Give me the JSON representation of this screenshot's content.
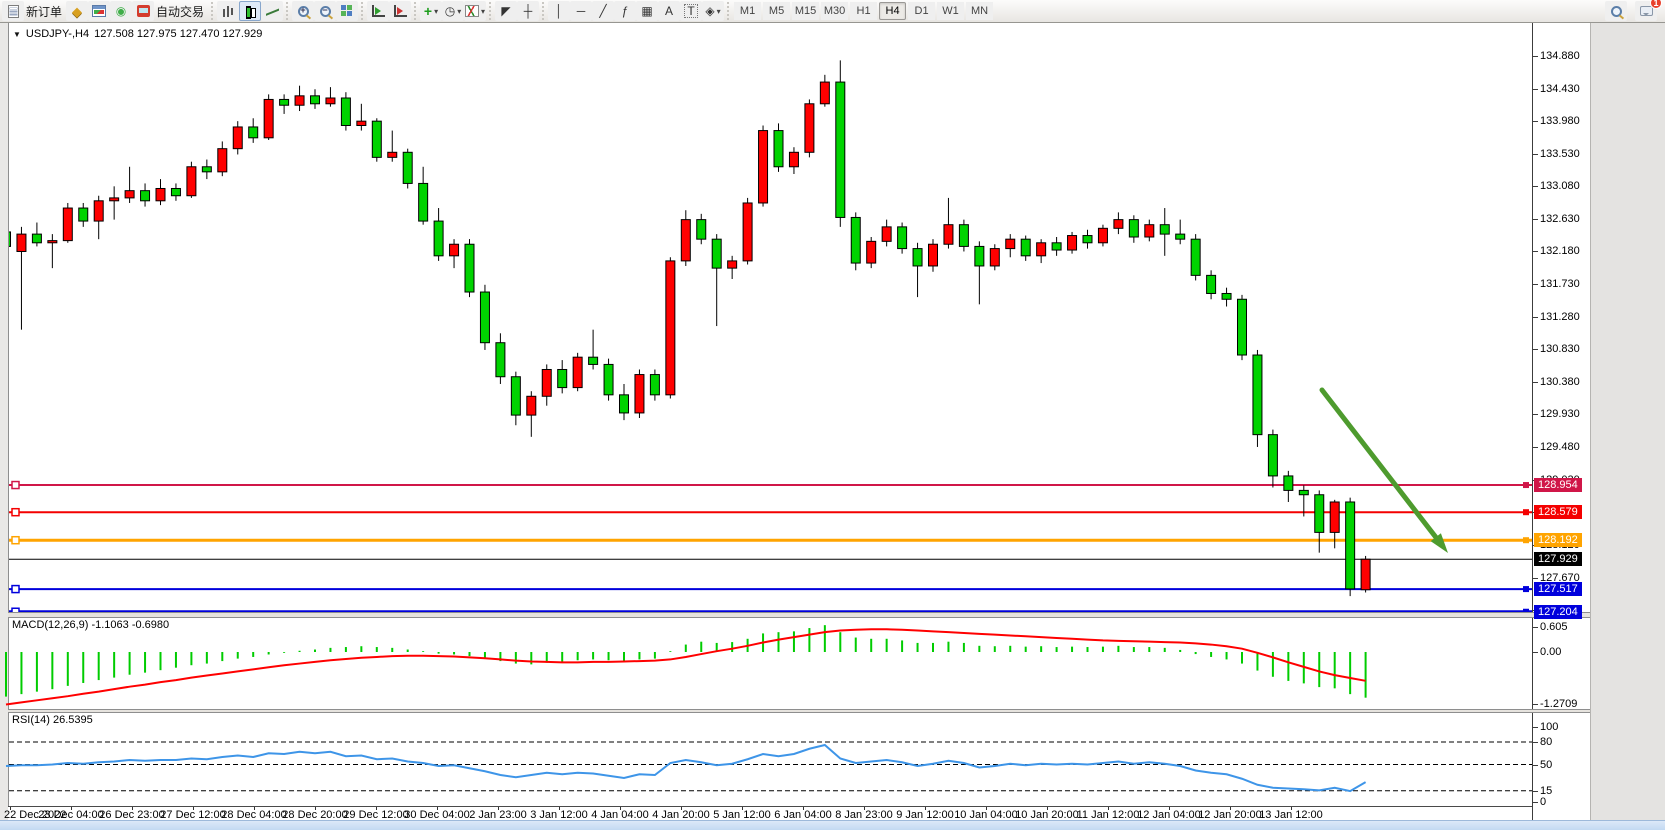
{
  "toolbar": {
    "new_order_label": "新订单",
    "auto_trading_label": "自动交易",
    "timeframes": [
      "M1",
      "M5",
      "M15",
      "M30",
      "H1",
      "H4",
      "D1",
      "W1",
      "MN"
    ],
    "active_timeframe": "H4",
    "chat_badge_count": "1"
  },
  "icons": {
    "collapse": "▼",
    "diamond": "◆",
    "signal": "◉",
    "clock": "◷",
    "cursor": "◤",
    "crosshair": "┼",
    "vline": "│",
    "hline": "─",
    "trendline": "╱",
    "fibonacci": "ƒ",
    "grid": "▦",
    "text": "A",
    "label": "T",
    "shapes": "◈",
    "dropdown": "▾",
    "plus": "+"
  },
  "chart": {
    "symbol_title": "USDJPY-,H4",
    "ohlc_text": "127.508 127.975 127.470 127.929",
    "macd_label": "MACD(12,26,9) -1.1063 -0.6980",
    "rsi_label": "RSI(14) 26.5395"
  },
  "chart_data": [
    {
      "type": "candlestick",
      "symbol": "USDJPY-",
      "timeframe": "H4",
      "up_color": "#ff0000",
      "down_color": "#00d300",
      "price_ticks": [
        {
          "p": 134.88,
          "t": "134.880"
        },
        {
          "p": 134.43,
          "t": "134.430"
        },
        {
          "p": 133.98,
          "t": "133.980"
        },
        {
          "p": 133.53,
          "t": "133.530"
        },
        {
          "p": 133.08,
          "t": "133.080"
        },
        {
          "p": 132.63,
          "t": "132.630"
        },
        {
          "p": 132.18,
          "t": "132.180"
        },
        {
          "p": 131.73,
          "t": "131.730"
        },
        {
          "p": 131.28,
          "t": "131.280"
        },
        {
          "p": 130.83,
          "t": "130.830"
        },
        {
          "p": 130.38,
          "t": "130.380"
        },
        {
          "p": 129.93,
          "t": "129.930"
        },
        {
          "p": 129.48,
          "t": "129.480"
        },
        {
          "p": 129.03,
          "t": "129.030"
        },
        {
          "p": 128.58,
          "t": "128.580"
        },
        {
          "p": 128.12,
          "t": "128.120"
        },
        {
          "p": 127.67,
          "t": "127.670"
        },
        {
          "p": 127.23,
          "t": "127.230"
        }
      ],
      "time_labels": [
        "22 Dec 2022",
        "23 Dec 04:00",
        "26 Dec 23:00",
        "27 Dec 12:00",
        "28 Dec 04:00",
        "28 Dec 20:00",
        "29 Dec 12:00",
        "30 Dec 04:00",
        "2 Jan 23:00",
        "3 Jan 12:00",
        "4 Jan 04:00",
        "4 Jan 20:00",
        "5 Jan 12:00",
        "6 Jan 04:00",
        "8 Jan 23:00",
        "9 Jan 12:00",
        "10 Jan 04:00",
        "10 Jan 20:00",
        "11 Jan 12:00",
        "12 Jan 04:00",
        "12 Jan 20:00",
        "13 Jan 12:00"
      ],
      "hlines": [
        {
          "price": 128.954,
          "color": "#d01648",
          "width": 2,
          "label": "128.954"
        },
        {
          "price": 128.579,
          "color": "#f40000",
          "width": 2,
          "label": "128.579"
        },
        {
          "price": 128.192,
          "color": "#ffa400",
          "width": 3,
          "label": "128.192"
        },
        {
          "price": 127.929,
          "color": "#000000",
          "width": 1,
          "label": "127.929",
          "no_anchor": true
        },
        {
          "price": 127.517,
          "color": "#0000dc",
          "width": 2,
          "label": "127.517"
        },
        {
          "price": 127.204,
          "color": "#0000dc",
          "width": 3,
          "label": "127.204"
        }
      ],
      "arrow": {
        "from": [
          1322,
          390
        ],
        "to": [
          1448,
          553
        ],
        "color": "#4e9b2e"
      },
      "candles": [
        [
          132.45,
          132.5,
          132.18,
          132.25
        ],
        [
          132.18,
          132.52,
          131.1,
          132.42
        ],
        [
          132.42,
          132.58,
          132.25,
          132.3
        ],
        [
          132.3,
          132.42,
          131.95,
          132.33
        ],
        [
          132.33,
          132.85,
          132.3,
          132.78
        ],
        [
          132.78,
          132.85,
          132.52,
          132.6
        ],
        [
          132.6,
          132.95,
          132.35,
          132.88
        ],
        [
          132.88,
          133.08,
          132.62,
          132.92
        ],
        [
          132.92,
          133.35,
          132.85,
          133.02
        ],
        [
          133.02,
          133.12,
          132.8,
          132.88
        ],
        [
          132.88,
          133.18,
          132.82,
          133.05
        ],
        [
          133.05,
          133.12,
          132.88,
          132.95
        ],
        [
          132.95,
          133.42,
          132.92,
          133.35
        ],
        [
          133.35,
          133.45,
          133.18,
          133.28
        ],
        [
          133.28,
          133.7,
          133.22,
          133.6
        ],
        [
          133.6,
          133.98,
          133.52,
          133.9
        ],
        [
          133.9,
          134.02,
          133.68,
          133.75
        ],
        [
          133.75,
          134.35,
          133.72,
          134.28
        ],
        [
          134.28,
          134.35,
          134.08,
          134.2
        ],
        [
          134.2,
          134.47,
          134.12,
          134.33
        ],
        [
          134.33,
          134.42,
          134.15,
          134.22
        ],
        [
          134.22,
          134.45,
          134.18,
          134.3
        ],
        [
          134.3,
          134.38,
          133.85,
          133.92
        ],
        [
          133.92,
          134.22,
          133.85,
          133.98
        ],
        [
          133.98,
          134.02,
          133.42,
          133.48
        ],
        [
          133.48,
          133.85,
          133.42,
          133.55
        ],
        [
          133.55,
          133.6,
          133.05,
          133.12
        ],
        [
          133.12,
          133.35,
          132.55,
          132.6
        ],
        [
          132.6,
          132.78,
          132.05,
          132.12
        ],
        [
          132.12,
          132.35,
          131.95,
          132.28
        ],
        [
          132.28,
          132.35,
          131.55,
          131.62
        ],
        [
          131.62,
          131.72,
          130.82,
          130.92
        ],
        [
          130.92,
          131.05,
          130.35,
          130.45
        ],
        [
          130.45,
          130.52,
          129.78,
          129.92
        ],
        [
          129.92,
          130.25,
          129.62,
          130.18
        ],
        [
          130.18,
          130.62,
          130.05,
          130.55
        ],
        [
          130.55,
          130.68,
          130.22,
          130.3
        ],
        [
          130.3,
          130.78,
          130.25,
          130.72
        ],
        [
          130.72,
          131.1,
          130.55,
          130.62
        ],
        [
          130.62,
          130.7,
          130.12,
          130.2
        ],
        [
          130.2,
          130.35,
          129.85,
          129.95
        ],
        [
          129.95,
          130.55,
          129.88,
          130.48
        ],
        [
          130.48,
          130.55,
          130.12,
          130.2
        ],
        [
          130.2,
          132.1,
          130.15,
          132.05
        ],
        [
          132.05,
          132.75,
          131.98,
          132.62
        ],
        [
          132.62,
          132.7,
          132.28,
          132.35
        ],
        [
          132.35,
          132.42,
          131.15,
          131.95
        ],
        [
          131.95,
          132.12,
          131.8,
          132.05
        ],
        [
          132.05,
          132.92,
          132.0,
          132.85
        ],
        [
          132.85,
          133.92,
          132.8,
          133.85
        ],
        [
          133.85,
          133.95,
          133.28,
          133.35
        ],
        [
          133.35,
          133.62,
          133.25,
          133.55
        ],
        [
          133.55,
          134.28,
          133.48,
          134.22
        ],
        [
          134.22,
          134.62,
          134.18,
          134.52
        ],
        [
          134.52,
          134.82,
          132.52,
          132.65
        ],
        [
          132.65,
          132.72,
          131.92,
          132.02
        ],
        [
          132.02,
          132.38,
          131.95,
          132.32
        ],
        [
          132.32,
          132.62,
          132.25,
          132.52
        ],
        [
          132.52,
          132.58,
          132.15,
          132.22
        ],
        [
          132.22,
          132.3,
          131.55,
          131.98
        ],
        [
          131.98,
          132.35,
          131.9,
          132.28
        ],
        [
          132.28,
          132.92,
          132.22,
          132.55
        ],
        [
          132.55,
          132.62,
          132.18,
          132.25
        ],
        [
          132.25,
          132.32,
          131.45,
          131.98
        ],
        [
          131.98,
          132.28,
          131.92,
          132.22
        ],
        [
          132.22,
          132.42,
          132.1,
          132.35
        ],
        [
          132.35,
          132.4,
          132.05,
          132.12
        ],
        [
          132.12,
          132.35,
          132.02,
          132.3
        ],
        [
          132.3,
          132.38,
          132.12,
          132.2
        ],
        [
          132.2,
          132.45,
          132.15,
          132.4
        ],
        [
          132.4,
          132.48,
          132.22,
          132.3
        ],
        [
          132.3,
          132.55,
          132.25,
          132.5
        ],
        [
          132.5,
          132.72,
          132.42,
          132.62
        ],
        [
          132.62,
          132.68,
          132.3,
          132.38
        ],
        [
          132.38,
          132.62,
          132.32,
          132.55
        ],
        [
          132.55,
          132.78,
          132.12,
          132.42
        ],
        [
          132.42,
          132.62,
          132.28,
          132.35
        ],
        [
          132.35,
          132.42,
          131.78,
          131.85
        ],
        [
          131.85,
          131.92,
          131.52,
          131.6
        ],
        [
          131.6,
          131.68,
          131.42,
          131.52
        ],
        [
          131.52,
          131.58,
          130.68,
          130.75
        ],
        [
          130.75,
          130.82,
          129.48,
          129.65
        ],
        [
          129.65,
          129.72,
          128.92,
          129.08
        ],
        [
          129.08,
          129.15,
          128.72,
          128.88
        ],
        [
          128.88,
          128.95,
          128.52,
          128.82
        ],
        [
          128.82,
          128.88,
          128.02,
          128.3
        ],
        [
          128.3,
          128.75,
          128.08,
          128.72
        ],
        [
          128.72,
          128.78,
          127.42,
          127.52
        ],
        [
          127.508,
          127.975,
          127.47,
          127.929
        ]
      ]
    },
    {
      "type": "macd",
      "label": "MACD(12,26,9)",
      "main_value": "-1.1063",
      "signal_value": "-0.6980",
      "axis_labels": [
        0.605,
        0.0,
        -1.2709
      ],
      "hist_color": "#00cc00",
      "signal_color": "#ff0000",
      "histogram": [
        -1.08,
        -1.02,
        -0.96,
        -0.9,
        -0.82,
        -0.75,
        -0.68,
        -0.62,
        -0.55,
        -0.5,
        -0.44,
        -0.38,
        -0.32,
        -0.28,
        -0.22,
        -0.16,
        -0.12,
        -0.06,
        -0.02,
        0.03,
        0.06,
        0.1,
        0.12,
        0.14,
        0.12,
        0.1,
        0.06,
        0.02,
        -0.04,
        -0.06,
        -0.1,
        -0.15,
        -0.22,
        -0.28,
        -0.3,
        -0.26,
        -0.24,
        -0.2,
        -0.18,
        -0.2,
        -0.22,
        -0.18,
        -0.16,
        0.02,
        0.18,
        0.25,
        0.22,
        0.24,
        0.32,
        0.45,
        0.48,
        0.5,
        0.58,
        0.65,
        0.48,
        0.35,
        0.32,
        0.32,
        0.28,
        0.22,
        0.22,
        0.25,
        0.22,
        0.15,
        0.14,
        0.15,
        0.13,
        0.14,
        0.12,
        0.13,
        0.12,
        0.13,
        0.15,
        0.12,
        0.12,
        0.1,
        0.05,
        -0.05,
        -0.12,
        -0.18,
        -0.28,
        -0.45,
        -0.6,
        -0.7,
        -0.76,
        -0.85,
        -0.88,
        -1.02,
        -1.1063
      ],
      "signal": [
        -1.27,
        -1.22,
        -1.17,
        -1.12,
        -1.07,
        -1.01,
        -0.96,
        -0.9,
        -0.84,
        -0.79,
        -0.73,
        -0.68,
        -0.62,
        -0.57,
        -0.52,
        -0.47,
        -0.42,
        -0.37,
        -0.32,
        -0.28,
        -0.24,
        -0.2,
        -0.17,
        -0.14,
        -0.12,
        -0.1,
        -0.09,
        -0.09,
        -0.1,
        -0.11,
        -0.13,
        -0.15,
        -0.18,
        -0.21,
        -0.23,
        -0.24,
        -0.25,
        -0.25,
        -0.24,
        -0.24,
        -0.23,
        -0.22,
        -0.21,
        -0.18,
        -0.12,
        -0.05,
        0.02,
        0.08,
        0.15,
        0.23,
        0.3,
        0.36,
        0.42,
        0.48,
        0.52,
        0.54,
        0.55,
        0.55,
        0.54,
        0.52,
        0.5,
        0.48,
        0.46,
        0.44,
        0.42,
        0.4,
        0.38,
        0.36,
        0.34,
        0.32,
        0.3,
        0.28,
        0.27,
        0.26,
        0.25,
        0.24,
        0.23,
        0.21,
        0.18,
        0.14,
        0.08,
        -0.02,
        -0.13,
        -0.25,
        -0.36,
        -0.47,
        -0.56,
        -0.63,
        -0.698
      ]
    },
    {
      "type": "rsi",
      "label": "RSI(14)",
      "current_value": "26.5395",
      "period": 14,
      "levels": [
        80,
        50,
        15
      ],
      "axis_labels": [
        100,
        80,
        50,
        15,
        0
      ],
      "color": "#3e95e8",
      "values": [
        48,
        49,
        49,
        50,
        52,
        51,
        53,
        54,
        56,
        55,
        56,
        56,
        58,
        57,
        60,
        62,
        60,
        65,
        64,
        67,
        65,
        67,
        61,
        62,
        57,
        58,
        54,
        52,
        48,
        49,
        45,
        41,
        36,
        33,
        36,
        39,
        37,
        39,
        38,
        35,
        32,
        37,
        36,
        52,
        56,
        53,
        49,
        51,
        57,
        64,
        61,
        64,
        71,
        76,
        58,
        52,
        54,
        56,
        53,
        48,
        51,
        55,
        52,
        46,
        48,
        51,
        49,
        51,
        50,
        51,
        50,
        52,
        54,
        51,
        53,
        51,
        48,
        42,
        39,
        37,
        31,
        23,
        19,
        18,
        17,
        15.5,
        19,
        14.5,
        26.5
      ]
    }
  ]
}
